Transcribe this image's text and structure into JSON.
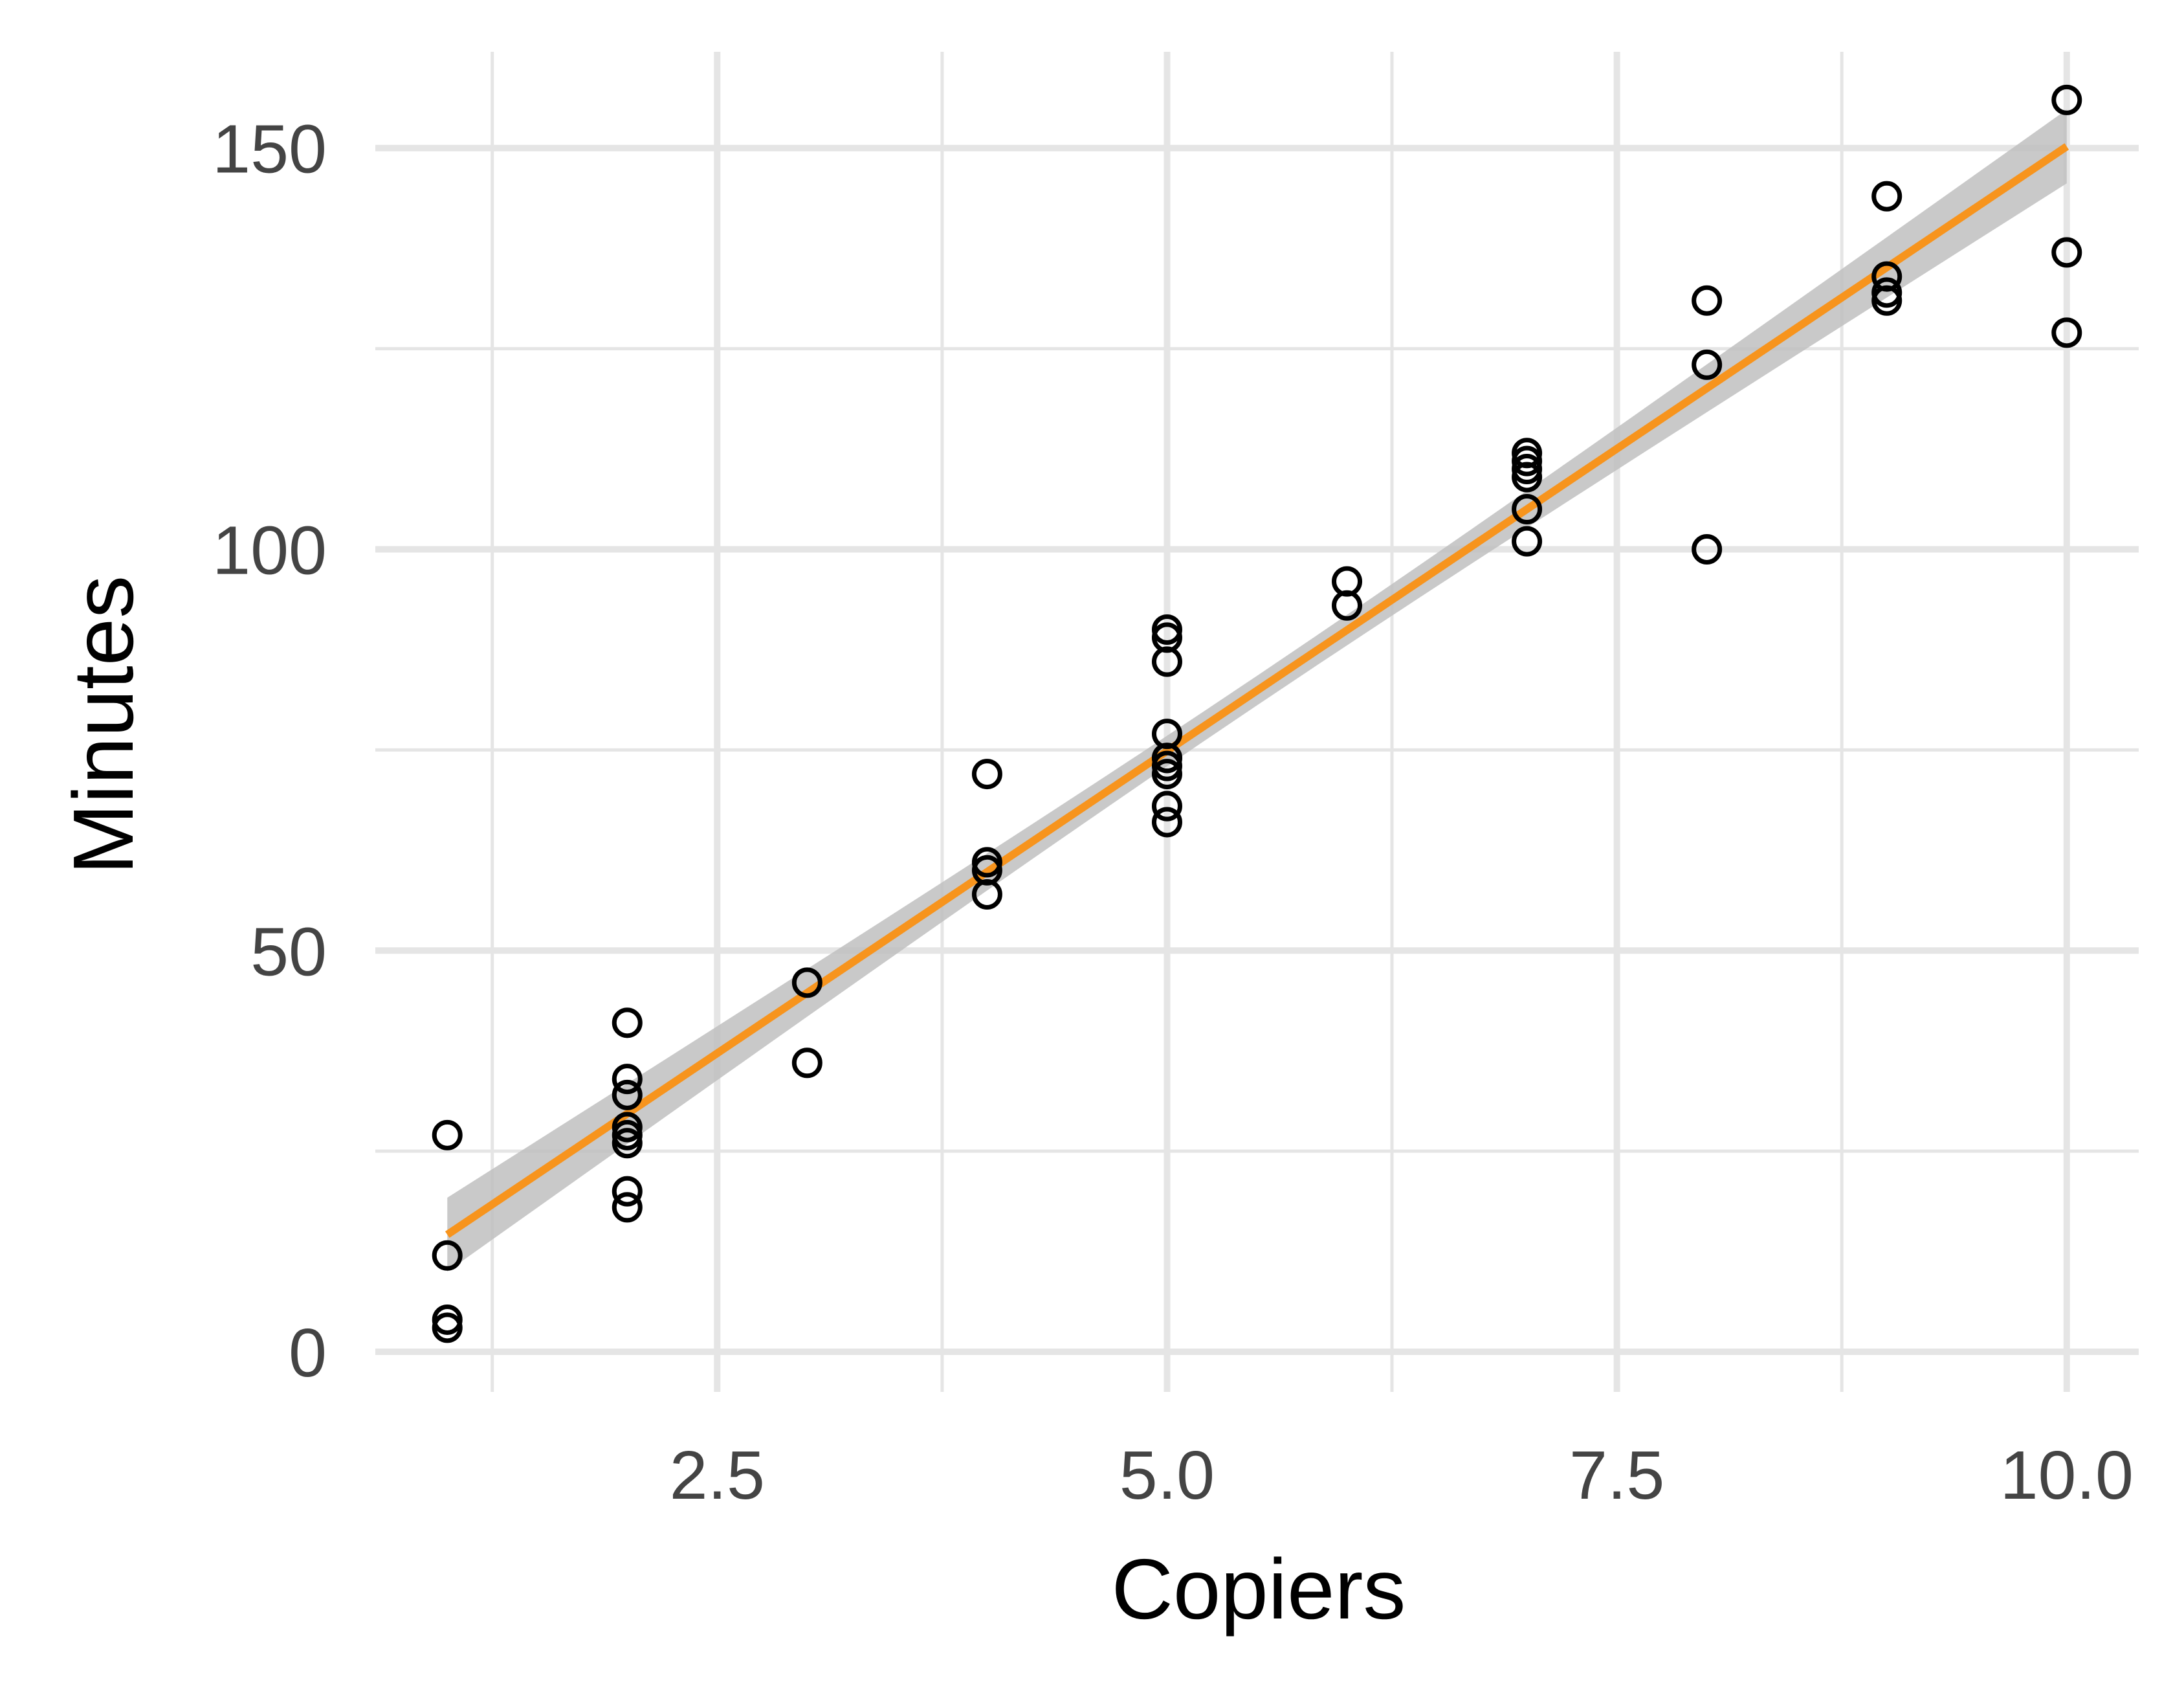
{
  "chart_data": {
    "type": "scatter",
    "title": "",
    "xlabel": "Copiers",
    "ylabel": "Minutes",
    "xlim": [
      0.6,
      10.4
    ],
    "ylim": [
      -5,
      162
    ],
    "x_ticks": [
      2.5,
      5.0,
      7.5,
      10.0
    ],
    "x_tick_labels": [
      "2.5",
      "5.0",
      "7.5",
      "10.0"
    ],
    "x_minor_ticks": [
      1.25,
      3.75,
      6.25,
      8.75
    ],
    "y_ticks": [
      0,
      50,
      100,
      150
    ],
    "y_tick_labels": [
      "0",
      "50",
      "100",
      "150"
    ],
    "y_minor_ticks": [
      25,
      75,
      125
    ],
    "grid": true,
    "legend": "none",
    "colors": {
      "points": "#000000",
      "fit_line": "#f7941d",
      "confidence_band": "#bfbfbf",
      "grid": "#e5e5e5"
    },
    "series": [
      {
        "kind": "points",
        "x": [
          1,
          1,
          1,
          1,
          2,
          2,
          2,
          2,
          2,
          2,
          2,
          2,
          3,
          3,
          4,
          4,
          4,
          4,
          5,
          5,
          5,
          5,
          5,
          5,
          5,
          5,
          5,
          5,
          6,
          6,
          7,
          7,
          7,
          7,
          7,
          7,
          8,
          8,
          8,
          9,
          9,
          9,
          9,
          10,
          10,
          10
        ],
        "y": [
          27,
          12,
          4,
          3,
          41,
          34,
          32,
          28,
          27,
          20,
          18,
          26,
          46,
          36,
          72,
          61,
          60,
          57,
          90,
          89,
          86,
          77,
          74,
          73,
          68,
          66,
          72,
          74,
          96,
          93,
          112,
          111,
          109,
          105,
          101,
          110,
          131,
          123,
          100,
          144,
          134,
          132,
          131,
          156,
          137,
          127
        ]
      },
      {
        "kind": "fit",
        "x": [
          1,
          10
        ],
        "y": [
          14.6,
          150.2
        ],
        "band_lower": [
          10.2,
          145.4
        ],
        "band_upper": [
          19.0,
          155.0
        ]
      }
    ]
  }
}
